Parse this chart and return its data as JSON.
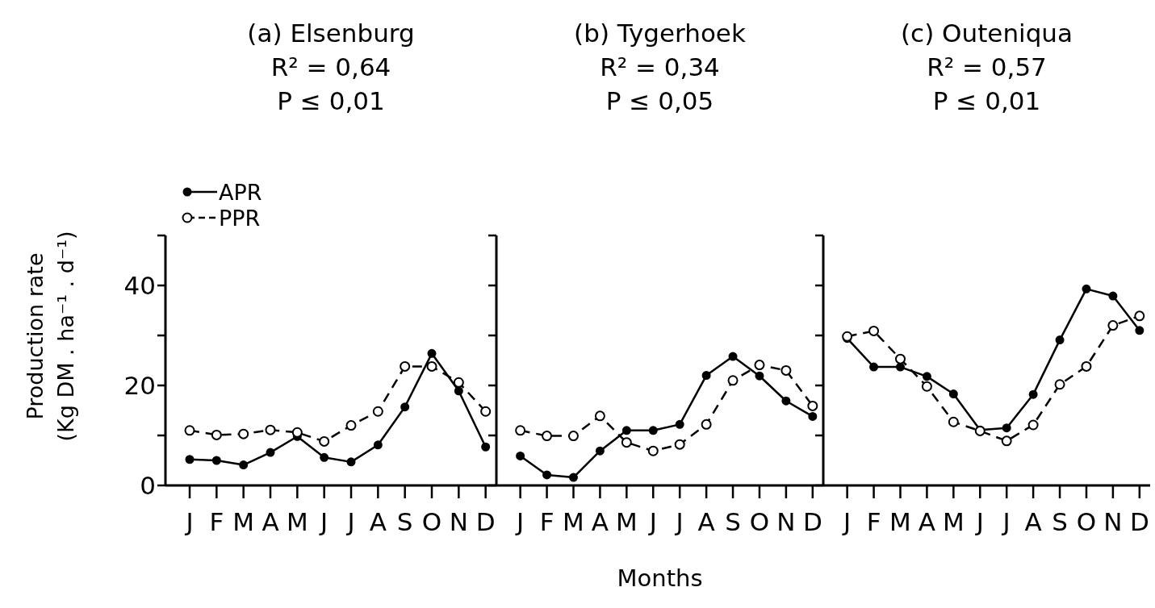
{
  "chart_data": [
    {
      "type": "line",
      "title": "(a) Elsenburg",
      "annotations": [
        "R² = 0,64",
        "P ≤ 0,01"
      ],
      "ylabel": "Production rate (Kg DM . ha⁻¹ . d⁻¹)",
      "categories": [
        "J",
        "F",
        "M",
        "A",
        "M",
        "J",
        "J",
        "A",
        "S",
        "O",
        "N",
        "D"
      ],
      "ylim": [
        0,
        50
      ],
      "yticks": [
        0,
        {
          "value": 10,
          "label": null
        },
        20,
        {
          "value": 30,
          "label": null
        },
        40,
        {
          "value": 50,
          "label": null
        }
      ],
      "legend": "top left",
      "marker": "circle",
      "series": [
        {
          "name": "APR",
          "color": "#000000",
          "line_style": "solid",
          "values": [
            5.2,
            5.0,
            4.1,
            6.6,
            9.8,
            5.6,
            4.7,
            8.1,
            15.7,
            26.4,
            18.9,
            7.7
          ]
        },
        {
          "name": "PPR",
          "color": "#000000",
          "line_style": "dashed",
          "values": [
            11.0,
            10.1,
            10.3,
            11.1,
            10.6,
            8.8,
            12.0,
            14.8,
            23.8,
            23.8,
            20.6,
            14.8
          ]
        }
      ]
    },
    {
      "type": "line",
      "title": "(b) Tygerhoek",
      "annotations": [
        "R² = 0,34",
        "P ≤ 0,05"
      ],
      "xlabel": "Months",
      "categories": [
        "J",
        "F",
        "M",
        "A",
        "M",
        "J",
        "J",
        "A",
        "S",
        "O",
        "N",
        "D"
      ],
      "ylim": [
        0,
        50
      ],
      "yticks": [
        0,
        {
          "value": 10,
          "label": null
        },
        20,
        {
          "value": 30,
          "label": null
        },
        40,
        {
          "value": 50,
          "label": null
        }
      ],
      "tick_labels": "x",
      "marker": "circle",
      "series": [
        {
          "color": "#000000",
          "line_style": "solid",
          "values": [
            5.9,
            2.1,
            1.6,
            6.9,
            11.0,
            11.0,
            12.2,
            22.0,
            25.8,
            21.9,
            16.9,
            13.8
          ]
        },
        {
          "color": "#000000",
          "line_style": "dashed",
          "values": [
            11.0,
            9.9,
            9.9,
            13.9,
            8.6,
            6.9,
            8.2,
            12.2,
            21.0,
            24.1,
            23.0,
            15.9
          ]
        }
      ]
    },
    {
      "type": "line",
      "title": "(c) Outeniqua",
      "annotations": [
        "R² = 0,57",
        "P ≤ 0,01"
      ],
      "categories": [
        "J",
        "F",
        "M",
        "A",
        "M",
        "J",
        "J",
        "A",
        "S",
        "O",
        "N",
        "D"
      ],
      "ylim": [
        0,
        50
      ],
      "yticks": [
        0,
        {
          "value": 10,
          "label": null
        },
        20,
        {
          "value": 30,
          "label": null
        },
        40,
        {
          "value": 50,
          "label": null
        }
      ],
      "tick_labels": "x",
      "marker": "circle",
      "series": [
        {
          "color": "#000000",
          "line_style": "solid",
          "values": [
            29.4,
            23.7,
            23.7,
            21.8,
            18.3,
            11.1,
            11.5,
            18.2,
            29.1,
            39.3,
            37.9,
            31.0
          ]
        },
        {
          "color": "#000000",
          "line_style": "dashed",
          "values": [
            29.8,
            30.9,
            25.3,
            19.8,
            12.7,
            10.9,
            8.9,
            12.1,
            20.2,
            23.8,
            32.0,
            33.9
          ]
        }
      ]
    }
  ]
}
